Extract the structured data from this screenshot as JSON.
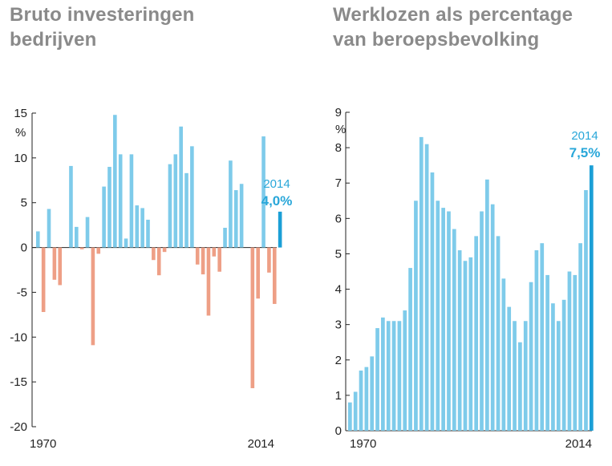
{
  "chart_data": [
    {
      "type": "bar",
      "title": "Bruto investeringen bedrijven",
      "unit": "%",
      "ylim": [
        -20,
        15
      ],
      "yticks": [
        "15",
        "10",
        "5",
        "0",
        "-5",
        "-10",
        "-15",
        "-20"
      ],
      "x_start_label": "1970",
      "x_end_label": "2014",
      "x": [
        1970,
        1971,
        1972,
        1973,
        1974,
        1975,
        1976,
        1977,
        1978,
        1979,
        1980,
        1981,
        1982,
        1983,
        1984,
        1985,
        1986,
        1987,
        1988,
        1989,
        1990,
        1991,
        1992,
        1993,
        1994,
        1995,
        1996,
        1997,
        1998,
        1999,
        2000,
        2001,
        2002,
        2003,
        2004,
        2005,
        2006,
        2007,
        2008,
        2009,
        2010,
        2011,
        2012,
        2013,
        2014
      ],
      "values": [
        1.8,
        -7.2,
        4.3,
        -3.6,
        -4.2,
        0,
        9.1,
        2.3,
        -0.2,
        3.4,
        -10.9,
        -0.7,
        6.8,
        9.0,
        14.8,
        10.4,
        1.0,
        10.4,
        4.7,
        4.4,
        3.1,
        -1.4,
        -3.1,
        -0.5,
        9.3,
        10.4,
        13.5,
        8.3,
        11.3,
        -1.9,
        -3.0,
        -7.6,
        -1.0,
        -2.7,
        2.2,
        9.7,
        6.4,
        7.1,
        0,
        -15.7,
        -5.7,
        12.4,
        -2.8,
        -6.3,
        4.0
      ],
      "colors": {
        "positive": "#7ecbea",
        "negative": "#ee9f86",
        "highlight": "#1b9fd6"
      },
      "annotation": {
        "year": "2014",
        "value": "4,0%"
      },
      "grid": false
    },
    {
      "type": "bar",
      "title": "Werklozen als percentage van beroepsbevolking",
      "unit": "%",
      "ylim": [
        0,
        9
      ],
      "yticks": [
        "9",
        "8",
        "7",
        "6",
        "5",
        "4",
        "3",
        "2",
        "1",
        "0"
      ],
      "x_start_label": "1970",
      "x_end_label": "2014",
      "x": [
        1970,
        1971,
        1972,
        1973,
        1974,
        1975,
        1976,
        1977,
        1978,
        1979,
        1980,
        1981,
        1982,
        1983,
        1984,
        1985,
        1986,
        1987,
        1988,
        1989,
        1990,
        1991,
        1992,
        1993,
        1994,
        1995,
        1996,
        1997,
        1998,
        1999,
        2000,
        2001,
        2002,
        2003,
        2004,
        2005,
        2006,
        2007,
        2008,
        2009,
        2010,
        2011,
        2012,
        2013,
        2014
      ],
      "values": [
        0.8,
        1.1,
        1.7,
        1.8,
        2.1,
        2.9,
        3.2,
        3.1,
        3.1,
        3.1,
        3.4,
        4.6,
        6.5,
        8.3,
        8.1,
        7.3,
        6.5,
        6.3,
        6.2,
        5.7,
        5.1,
        4.8,
        4.9,
        5.5,
        6.2,
        7.1,
        6.4,
        5.5,
        4.3,
        3.5,
        3.1,
        2.5,
        3.1,
        4.2,
        5.1,
        5.3,
        4.4,
        3.6,
        3.1,
        3.7,
        4.5,
        4.4,
        5.3,
        6.8,
        7.5
      ],
      "colors": {
        "bar": "#7ecbea",
        "highlight": "#1b9fd6"
      },
      "annotation": {
        "year": "2014",
        "value": "7,5%"
      },
      "grid": false
    }
  ]
}
